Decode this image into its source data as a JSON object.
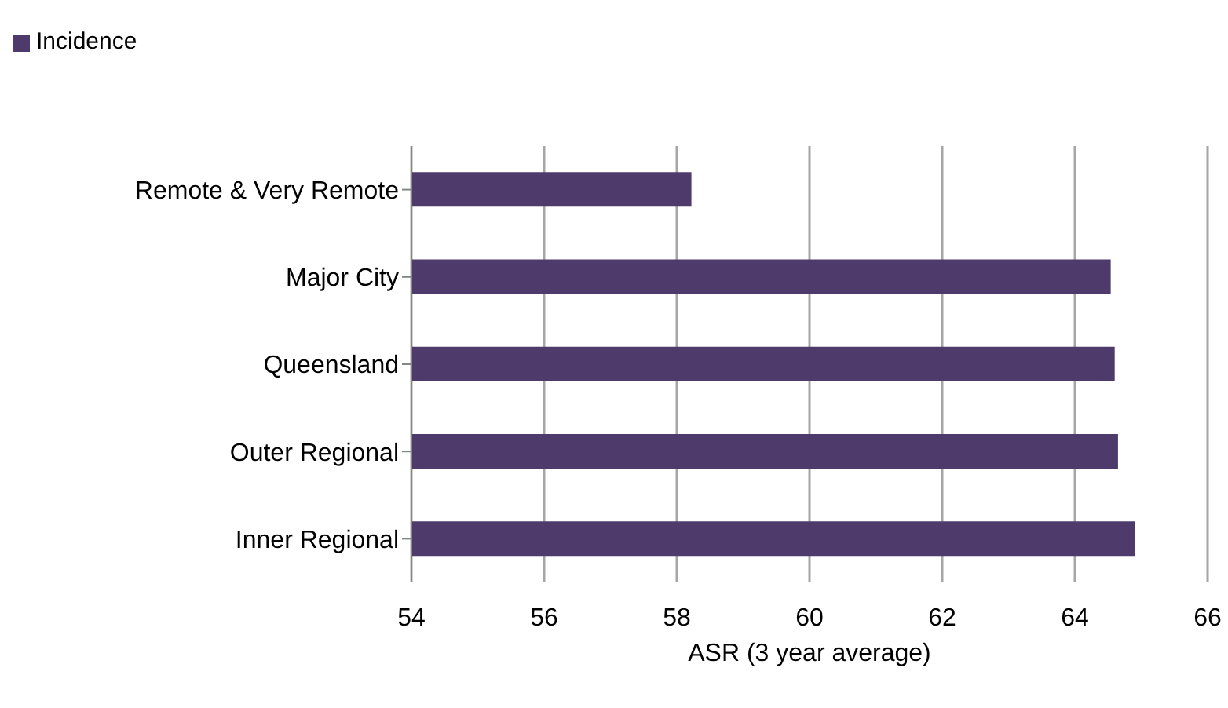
{
  "chart_data": {
    "type": "bar",
    "orientation": "horizontal",
    "xlabel": "ASR (3 year average)",
    "categories": [
      "Remote & Very Remote",
      "Major City",
      "Queensland",
      "Outer Regional",
      "Inner Regional"
    ],
    "series": [
      {
        "name": "Incidence",
        "color": "#4f3b6b",
        "values": [
          58.22,
          64.54,
          64.6,
          64.65,
          64.91
        ]
      }
    ],
    "xlim": [
      54,
      66
    ],
    "xticks": [
      54,
      56,
      58,
      60,
      62,
      64,
      66
    ],
    "grid": "x",
    "legend": "top left"
  }
}
